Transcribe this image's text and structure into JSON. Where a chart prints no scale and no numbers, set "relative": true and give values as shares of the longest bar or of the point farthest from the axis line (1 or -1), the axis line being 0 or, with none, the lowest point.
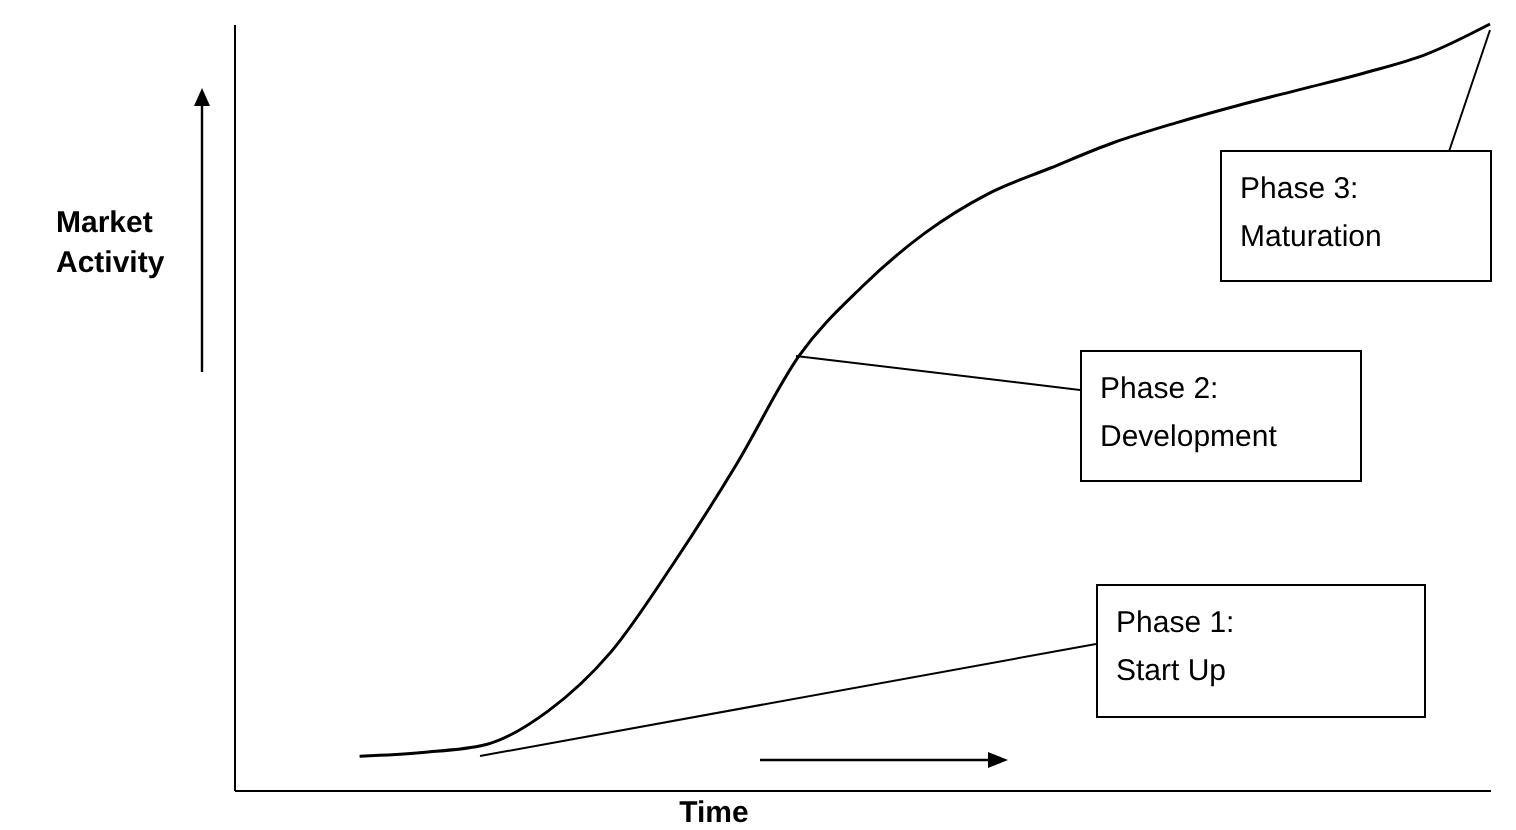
{
  "chart_data": {
    "type": "line",
    "relative": true,
    "xlabel": "Time",
    "ylabel": "Market Activity",
    "categories": [
      null,
      null,
      null,
      null,
      null,
      null,
      null,
      null,
      null,
      null,
      null,
      null,
      null,
      null,
      null,
      null,
      null,
      null,
      null,
      null,
      null
    ],
    "series": [
      {
        "color": "#000000",
        "values": [
          null,
          null,
          0.044,
          0.049,
          0.059,
          0.103,
          0.18,
          0.296,
          0.425,
          0.567,
          0.657,
          0.727,
          0.778,
          0.812,
          0.845,
          0.871,
          0.894,
          0.915,
          0.936,
          0.961,
          1
        ]
      }
    ],
    "annotations": [
      "Phase 1:\nStart Up",
      "Phase 2:\nDevelopment",
      "Phase 3:\nMaturation"
    ]
  }
}
